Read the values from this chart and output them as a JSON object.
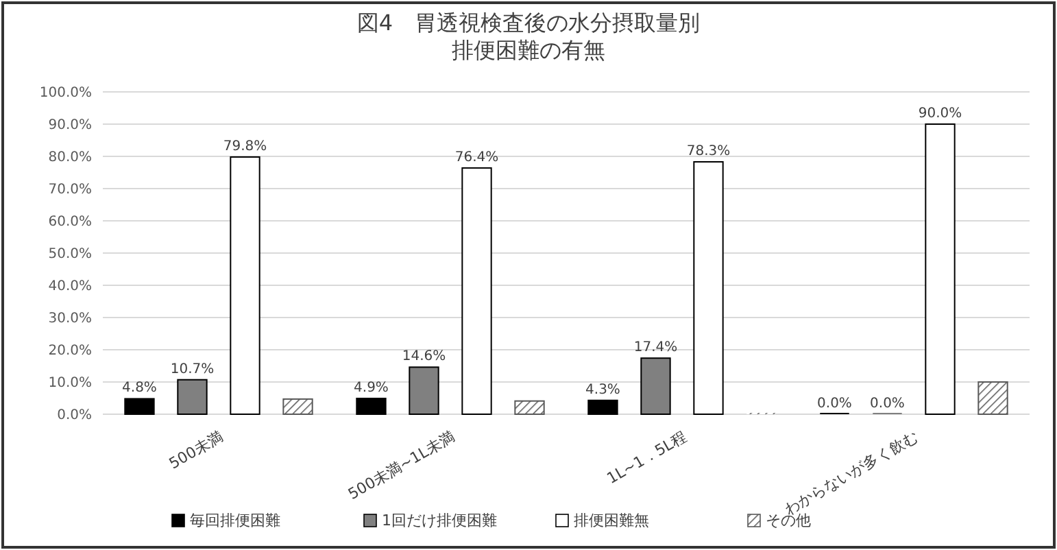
{
  "chart_data": {
    "type": "bar",
    "title": "図4　胃透視検査後の水分摂取量別",
    "subtitle": "排便困難の有無",
    "categories": [
      "500未満",
      "500未満~1L未満",
      "1L~1．5L程",
      "わからないが多く飲む"
    ],
    "series": [
      {
        "name": "毎回排便困難",
        "color": "#000000",
        "values": [
          4.8,
          4.9,
          4.3,
          0.0
        ],
        "value_labels": [
          "4.8%",
          "4.9%",
          "4.3%",
          "0.0%"
        ]
      },
      {
        "name": "1回だけ排便困難",
        "color": "#808080",
        "values": [
          10.7,
          14.6,
          17.4,
          0.0
        ],
        "value_labels": [
          "10.7%",
          "14.6%",
          "17.4%",
          "0.0%"
        ]
      },
      {
        "name": "排便困難無",
        "color": "#ffffff",
        "values": [
          79.8,
          76.4,
          78.3,
          90.0
        ],
        "value_labels": [
          "79.8%",
          "76.4%",
          "78.3%",
          "90.0%"
        ]
      },
      {
        "name": "その他",
        "color": "#595959",
        "values": [
          4.7,
          4.1,
          0.0,
          10.0
        ]
      }
    ],
    "ylim": [
      0,
      100
    ],
    "yticks": [
      {
        "value": 0,
        "label": "0.0%"
      },
      {
        "value": 10,
        "label": "10.0%"
      },
      {
        "value": 20,
        "label": "20.0%"
      },
      {
        "value": 30,
        "label": "30.0%"
      },
      {
        "value": 40,
        "label": "40.0%"
      },
      {
        "value": 50,
        "label": "50.0%"
      },
      {
        "value": 60,
        "label": "60.0%"
      },
      {
        "value": 70,
        "label": "70.0%"
      },
      {
        "value": 80,
        "label": "80.0%"
      },
      {
        "value": 90,
        "label": "90.0%"
      },
      {
        "value": 100,
        "label": "100.0%"
      }
    ],
    "grid": "y",
    "legend": "bottom"
  }
}
